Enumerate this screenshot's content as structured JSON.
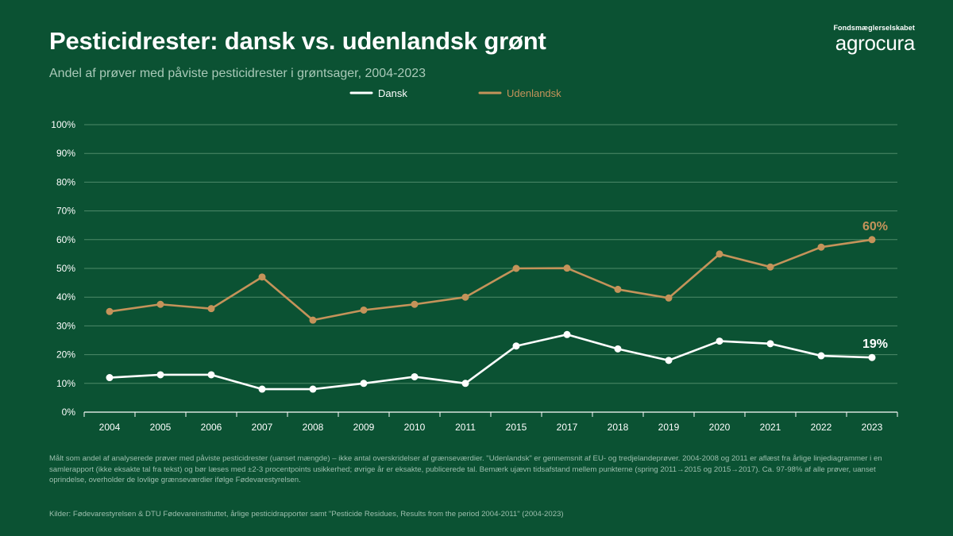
{
  "header": {
    "title": "Pesticidrester: dansk vs. udenlandsk grønt",
    "subtitle": "Andel af prøver med påviste pesticidrester i grøntsager, 2004-2023"
  },
  "brand": {
    "top": "Fondsmæglerselskabet",
    "name": "agrocura"
  },
  "chart_data": {
    "type": "line",
    "title": "Pesticidrester: dansk vs. udenlandsk grønt",
    "subtitle": "Andel af prøver med påviste pesticidrester i grøntsager, 2004-2023",
    "x": [
      "2004",
      "2005",
      "2006",
      "2007",
      "2008",
      "2009",
      "2010",
      "2011",
      "2015",
      "2017",
      "2018",
      "2019",
      "2020",
      "2021",
      "2022",
      "2023"
    ],
    "ylim": [
      0,
      100
    ],
    "yticks": [
      0,
      10,
      20,
      30,
      40,
      50,
      60,
      70,
      80,
      90,
      100
    ],
    "ytick_labels": [
      "0%",
      "10%",
      "20%",
      "30%",
      "40%",
      "50%",
      "60%",
      "70%",
      "80%",
      "90%",
      "100%"
    ],
    "grid": true,
    "legend_position": "top-center",
    "series": [
      {
        "name": "Dansk",
        "color": "#ffffff",
        "values": [
          12,
          13,
          13,
          8,
          8,
          10,
          12.3,
          10,
          23,
          27,
          22,
          18,
          24.7,
          23.8,
          19.6,
          19
        ],
        "end_label": "19%"
      },
      {
        "name": "Udenlandsk",
        "color": "#c4935a",
        "values": [
          35,
          37.5,
          36,
          47,
          32,
          35.5,
          37.5,
          40,
          50,
          50.1,
          42.7,
          39.7,
          55,
          50.5,
          57.4,
          60
        ],
        "end_label": "60%"
      }
    ]
  },
  "footnote": "Målt som andel af analyserede prøver med påviste pesticidrester (uanset mængde) – ikke antal overskridelser af grænseværdier. \"Udenlandsk\" er gennemsnit af EU- og tredjelandeprøver. 2004-2008 og 2011 er aflæst fra årlige linjediagrammer i en samlerapport (ikke eksakte tal fra tekst) og bør læses med ±2-3 procentpoints usikkerhed; øvrige år er eksakte, publicerede tal. Bemærk ujævn tidsafstand mellem punkterne (spring 2011→2015 og 2015→2017). Ca. 97-98% af alle prøver, uanset oprindelse, overholder de lovlige grænseværdier ifølge Fødevarestyrelsen.",
  "sources": "Kilder: Fødevarestyrelsen & DTU Fødevareinstituttet, årlige pesticidrapporter samt \"Pesticide Residues, Results from the period 2004-2011\" (2004-2023)",
  "colors": {
    "background": "#0b5233",
    "grid": "#4e8a69",
    "axis": "#ffffff",
    "dansk": "#ffffff",
    "udenlandsk": "#c4935a"
  }
}
